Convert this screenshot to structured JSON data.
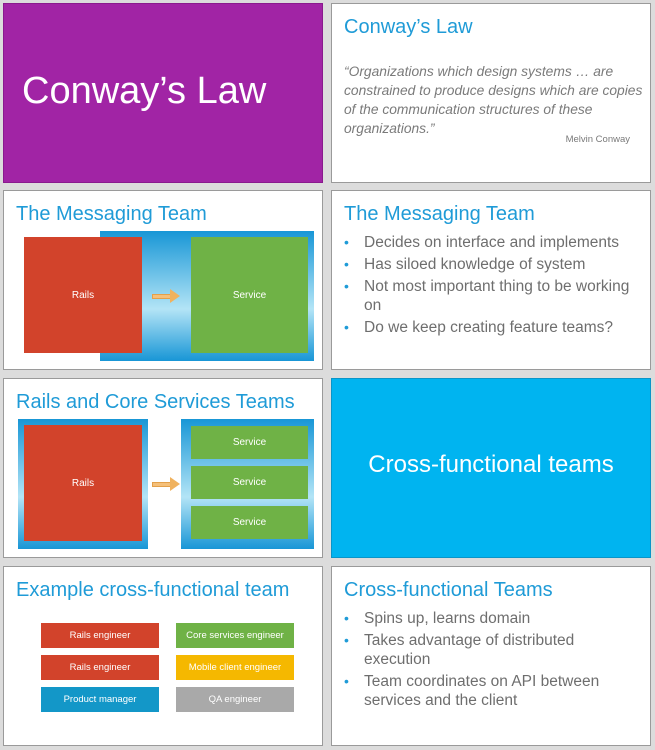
{
  "slide1": {
    "title": "Conway’s Law",
    "bg": "#a124a5"
  },
  "slide2": {
    "title": "Conway’s Law",
    "quote": "“Organizations which design systems … are constrained to produce designs which are copies of the communication structures of these organizations.”",
    "author": "Melvin Conway"
  },
  "slide3": {
    "title": "The Messaging Team",
    "rails": "Rails",
    "service": "Service"
  },
  "slide4": {
    "title": "The Messaging Team",
    "bullets": [
      "Decides on interface and implements",
      "Has siloed knowledge of system",
      "Not most important thing to be working on",
      "Do we keep creating feature teams?"
    ]
  },
  "slide5": {
    "title": "Rails and Core Services Teams",
    "rails": "Rails",
    "services": [
      "Service",
      "Service",
      "Service"
    ]
  },
  "slide6": {
    "title": "Cross-functional teams",
    "bg": "#00b4f0"
  },
  "slide7": {
    "title": "Example cross-functional team",
    "roles": [
      {
        "label": "Rails engineer",
        "color": "#d2432b"
      },
      {
        "label": "Core services engineer",
        "color": "#6fb246"
      },
      {
        "label": "Rails engineer",
        "color": "#d2432b"
      },
      {
        "label": "Mobile client engineer",
        "color": "#f5b800"
      },
      {
        "label": "Product manager",
        "color": "#1397c8"
      },
      {
        "label": "QA engineer",
        "color": "#a9a9a9"
      }
    ]
  },
  "slide8": {
    "title": "Cross-functional Teams",
    "bullets": [
      "Spins up, learns domain",
      "Takes advantage of distributed execution",
      "Team coordinates on API between services and the client"
    ]
  }
}
